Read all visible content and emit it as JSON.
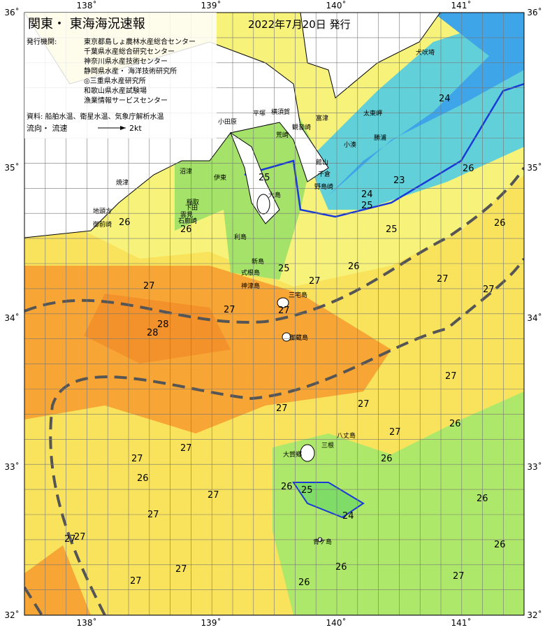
{
  "header": {
    "title": "関東・ 東海海況速報",
    "date": "2022年7月20日 発行"
  },
  "issuers": {
    "label": "発行機関:",
    "items": [
      "東京都島しょ農林水産総合センター",
      "千葉県水産総合研究センター",
      "神奈川県水産技術センター",
      "静岡県水産・ 海洋技術研究所",
      "◎三重県水産研究所",
      "和歌山県水産試験場",
      "漁業情報サービスセンター"
    ]
  },
  "source": "資料: 船舶水温、衛星水温、気象庁解析水温",
  "legend": {
    "label": "流向・ 流速",
    "speed": "2kt"
  },
  "axes": {
    "lon": [
      "138˚",
      "139˚",
      "140˚",
      "141˚"
    ],
    "lat": [
      "36˚",
      "35˚",
      "34˚",
      "33˚",
      "32˚"
    ]
  },
  "places": [
    "犬吠埼",
    "太東岬",
    "勝浦",
    "小湊",
    "館山",
    "千倉",
    "野島崎",
    "富津",
    "観音崎",
    "荒崎",
    "横須賀",
    "平塚",
    "小田原",
    "伊東",
    "大島",
    "稲取",
    "下田",
    "石廊崎",
    "雲見",
    "沼津",
    "焼津",
    "地頭方",
    "御前崎",
    "利島",
    "新島",
    "式根島",
    "神津島",
    "三宅島",
    "御蔵島",
    "八丈島",
    "三根",
    "大賀郷",
    "青ケ島"
  ],
  "isotherms": [
    "24",
    "25",
    "23",
    "26",
    "25",
    "24",
    "25",
    "26",
    "26",
    "25",
    "26",
    "26",
    "27",
    "27",
    "27",
    "27",
    "27",
    "27",
    "28",
    "28",
    "27",
    "27",
    "27",
    "27",
    "27",
    "27",
    "26",
    "27",
    "27",
    "27",
    "27",
    "27",
    "27",
    "26",
    "25",
    "24",
    "26",
    "26",
    "26",
    "26",
    "27",
    "26",
    "26"
  ]
}
